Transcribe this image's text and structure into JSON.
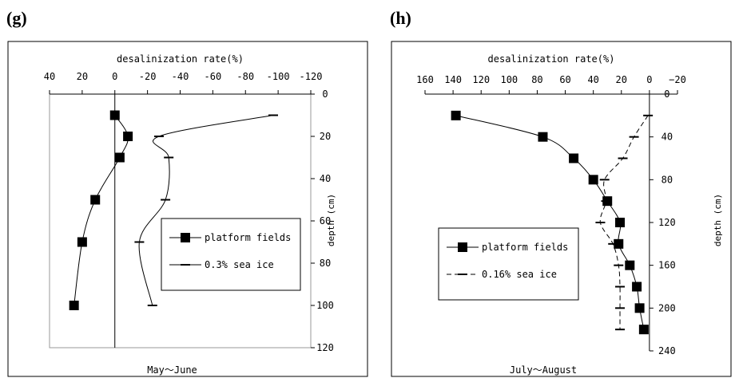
{
  "figure": {
    "panel_g_letter": "(g)",
    "panel_h_letter": "(h)"
  },
  "chart_data": [
    {
      "panel": "g",
      "type": "line",
      "title": "desalinization rate(%)",
      "footer": "May～June",
      "xlabel": "desalinization rate(%)",
      "ylabel": "depth (cm)",
      "xlim": [
        40,
        -120
      ],
      "ylim": [
        0,
        120
      ],
      "x_inverted": true,
      "y_inverted": true,
      "xticks": [
        40,
        20,
        0,
        -20,
        -40,
        -60,
        -80,
        -100,
        -120
      ],
      "xtick_labels": [
        "40",
        "20",
        "0",
        "-20",
        "-40",
        "-60",
        "-80",
        "-100",
        "-120"
      ],
      "yticks": [
        0,
        20,
        40,
        60,
        80,
        100,
        120
      ],
      "ytick_labels": [
        "0",
        "20",
        "40",
        "60",
        "80",
        "100",
        "120"
      ],
      "legend_position": "right",
      "series": [
        {
          "name": "platform fields",
          "marker": "square",
          "line": "solid",
          "x": [
            0,
            -8,
            -3,
            12,
            20,
            25
          ],
          "y": [
            10,
            20,
            30,
            50,
            70,
            100
          ]
        },
        {
          "name": "0.3% sea ice",
          "marker": "dash",
          "line": "solid",
          "x": [
            -97,
            -27,
            -33,
            -31,
            -15,
            -23
          ],
          "y": [
            10,
            20,
            30,
            50,
            70,
            100
          ]
        }
      ]
    },
    {
      "panel": "h",
      "type": "line",
      "title": "desalinization rate(%)",
      "footer": "July～August",
      "xlabel": "desalinization rate(%)",
      "ylabel": "depth (cm)",
      "xlim": [
        160,
        -20
      ],
      "ylim": [
        0,
        240
      ],
      "x_inverted": true,
      "y_inverted": true,
      "xticks": [
        160,
        140,
        120,
        100,
        80,
        60,
        40,
        20,
        0,
        -20
      ],
      "xtick_labels": [
        "160",
        "140",
        "120",
        "100",
        "80",
        "60",
        "40",
        "20",
        "0",
        "−20"
      ],
      "yticks": [
        0,
        40,
        80,
        120,
        160,
        200,
        240
      ],
      "ytick_labels": [
        "0",
        "40",
        "80",
        "120",
        "160",
        "200",
        "240"
      ],
      "legend_position": "left",
      "series": [
        {
          "name": "platform fields",
          "marker": "square",
          "line": "solid",
          "x": [
            138,
            76,
            54,
            40,
            30,
            21,
            22,
            14,
            9,
            7,
            4
          ],
          "y": [
            20,
            40,
            60,
            80,
            100,
            120,
            140,
            160,
            180,
            200,
            220
          ]
        },
        {
          "name": "0.16% sea ice",
          "marker": "dash",
          "line": "dashed",
          "x": [
            1,
            11,
            19,
            32,
            31,
            35,
            26,
            22,
            21,
            21,
            21
          ],
          "y": [
            20,
            40,
            60,
            80,
            100,
            120,
            140,
            160,
            180,
            200,
            220
          ]
        }
      ]
    }
  ]
}
